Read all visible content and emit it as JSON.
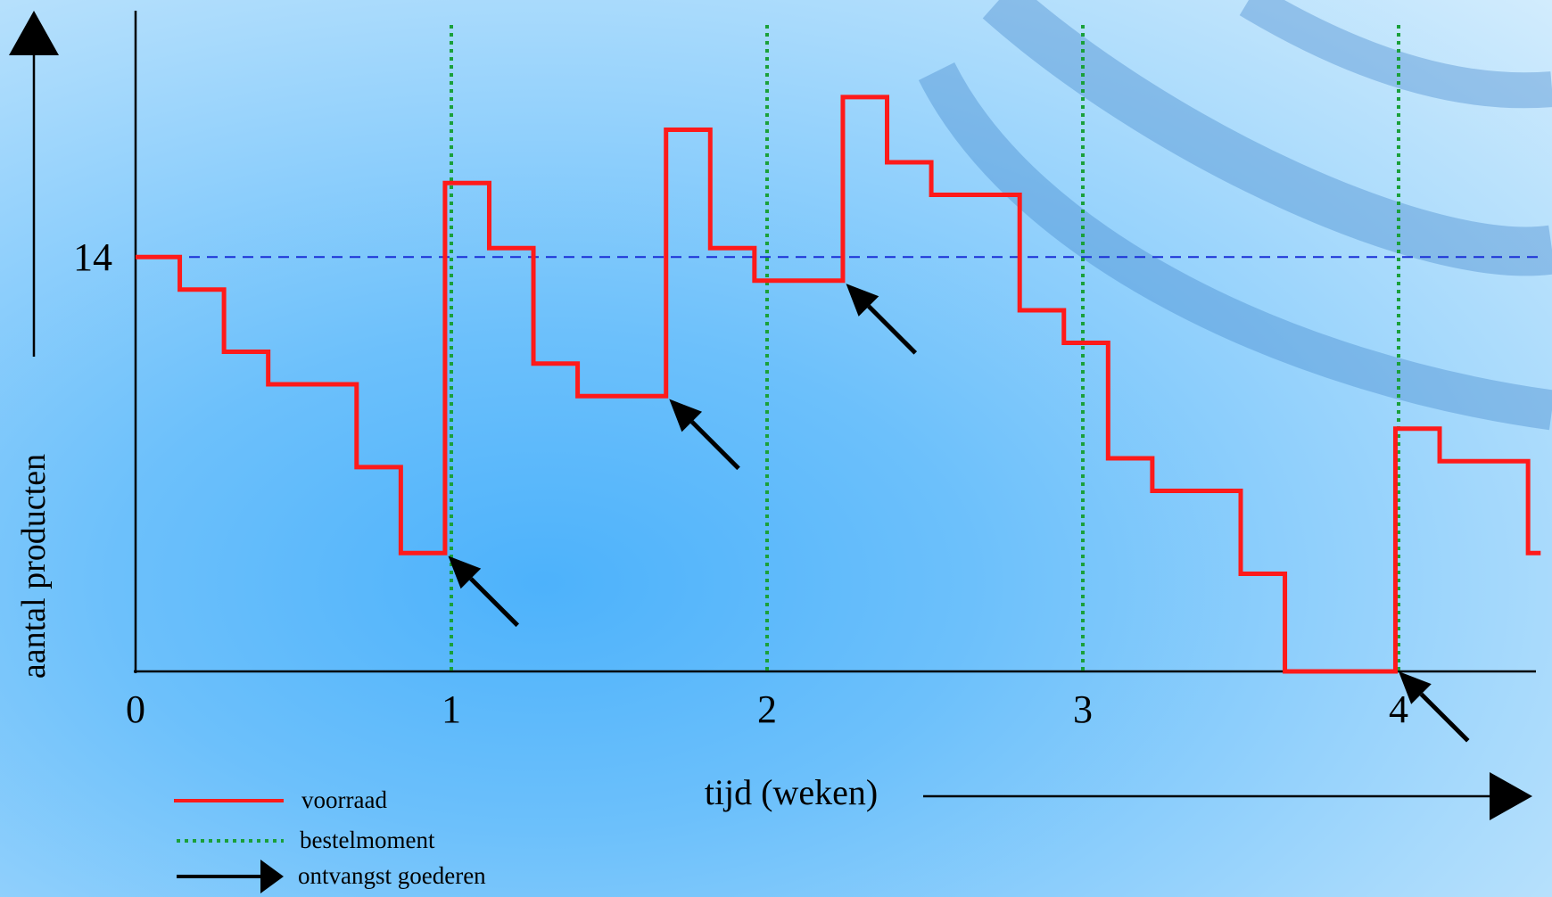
{
  "chart_data": {
    "type": "line",
    "xlabel": "tijd (weken)",
    "ylabel": "aantal producten",
    "xlim": [
      0,
      4.45
    ],
    "ylim": [
      0,
      22
    ],
    "x_ticks": [
      {
        "value": 0,
        "label": "0"
      },
      {
        "value": 1,
        "label": "1"
      },
      {
        "value": 2,
        "label": "2"
      },
      {
        "value": 3,
        "label": "3"
      },
      {
        "value": 4,
        "label": "4"
      }
    ],
    "y_ticks": [
      {
        "value": 14,
        "label": "14"
      }
    ],
    "reference_line": {
      "y": 14,
      "color": "#1a2fd6",
      "style": "dashed"
    },
    "order_moments": [
      1,
      2,
      3,
      4
    ],
    "series": [
      {
        "name": "voorraad",
        "color": "#ff1a1a",
        "step": true,
        "points": [
          [
            0,
            14
          ],
          [
            0.14,
            14
          ],
          [
            0.14,
            12.9
          ],
          [
            0.28,
            12.9
          ],
          [
            0.28,
            10.8
          ],
          [
            0.42,
            10.8
          ],
          [
            0.42,
            9.7
          ],
          [
            0.7,
            9.7
          ],
          [
            0.7,
            6.9
          ],
          [
            0.84,
            6.9
          ],
          [
            0.84,
            4.0
          ],
          [
            0.98,
            4.0
          ],
          [
            0.98,
            16.5
          ],
          [
            1.12,
            16.5
          ],
          [
            1.12,
            14.3
          ],
          [
            1.26,
            14.3
          ],
          [
            1.26,
            10.4
          ],
          [
            1.4,
            10.4
          ],
          [
            1.4,
            9.3
          ],
          [
            1.68,
            9.3
          ],
          [
            1.68,
            18.3
          ],
          [
            1.82,
            18.3
          ],
          [
            1.82,
            14.3
          ],
          [
            1.96,
            14.3
          ],
          [
            1.96,
            13.2
          ],
          [
            2.24,
            13.2
          ],
          [
            2.24,
            19.4
          ],
          [
            2.38,
            19.4
          ],
          [
            2.38,
            17.2
          ],
          [
            2.52,
            17.2
          ],
          [
            2.52,
            16.1
          ],
          [
            2.8,
            16.1
          ],
          [
            2.8,
            12.2
          ],
          [
            2.94,
            12.2
          ],
          [
            2.94,
            11.1
          ],
          [
            3.08,
            11.1
          ],
          [
            3.08,
            7.2
          ],
          [
            3.22,
            7.2
          ],
          [
            3.22,
            6.1
          ],
          [
            3.5,
            6.1
          ],
          [
            3.5,
            3.3
          ],
          [
            3.64,
            3.3
          ],
          [
            3.64,
            0
          ],
          [
            3.99,
            0
          ],
          [
            3.99,
            8.2
          ],
          [
            4.13,
            8.2
          ],
          [
            4.13,
            7.1
          ],
          [
            4.41,
            7.1
          ],
          [
            4.41,
            4.0
          ],
          [
            4.45,
            4.0
          ]
        ]
      }
    ],
    "receipt_arrows": [
      {
        "x": 0.99,
        "y": 3.9
      },
      {
        "x": 1.69,
        "y": 9.2
      },
      {
        "x": 2.25,
        "y": 13.1
      },
      {
        "x": 4.0,
        "y": 0
      }
    ],
    "legend": {
      "position": "bottom-left",
      "entries": [
        {
          "label": "voorraad",
          "style": "line",
          "color": "#ff1a1a"
        },
        {
          "label": "bestelmoment",
          "style": "dotted",
          "color": "#1aa03a"
        },
        {
          "label": "ontvangst goederen",
          "style": "arrow",
          "color": "#000000"
        }
      ]
    }
  }
}
